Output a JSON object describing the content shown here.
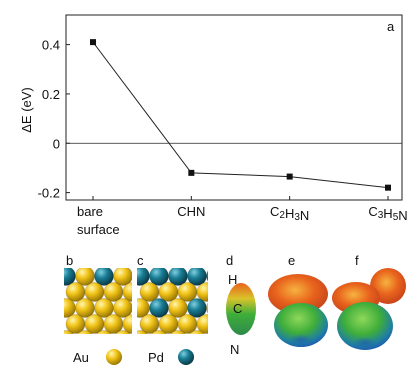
{
  "chart_data": {
    "type": "line",
    "panel_label": "a",
    "ylabel": "ΔE (eV)",
    "xlabel": "",
    "categories": [
      "bare surface",
      "CHN",
      "C2H3N",
      "C3H5N"
    ],
    "category_lines": [
      [
        "bare",
        "surface"
      ],
      [
        "CHN"
      ],
      [
        "C2H3N"
      ],
      [
        "C3H5N"
      ]
    ],
    "values": [
      0.41,
      -0.12,
      -0.135,
      -0.18
    ],
    "ylim": [
      -0.23,
      0.52
    ],
    "yticks": [
      0.4,
      0.2,
      0,
      -0.2
    ],
    "ytick_labels": [
      "0.4",
      "0.2",
      "0",
      "-0.2"
    ],
    "reference_line_y": 0,
    "marker": "square",
    "line_color": "#222222",
    "grid": false,
    "legend": "none"
  },
  "panels": {
    "b": {
      "label": "b",
      "legend_label": "Au",
      "legend_color": "#f2c418"
    },
    "c": {
      "label": "c",
      "legend_label": "Pd",
      "legend_color": "#1a7e95"
    },
    "d": {
      "label": "d",
      "atom_labels": [
        "H",
        "C",
        "N"
      ]
    },
    "e": {
      "label": "e"
    },
    "f": {
      "label": "f"
    }
  },
  "colors": {
    "gold_atom": "#f2c418",
    "palladium_atom": "#1a7e95",
    "potential_orange": "#e8631c",
    "potential_green": "#3fae3a",
    "potential_blue": "#1f5fb0"
  }
}
